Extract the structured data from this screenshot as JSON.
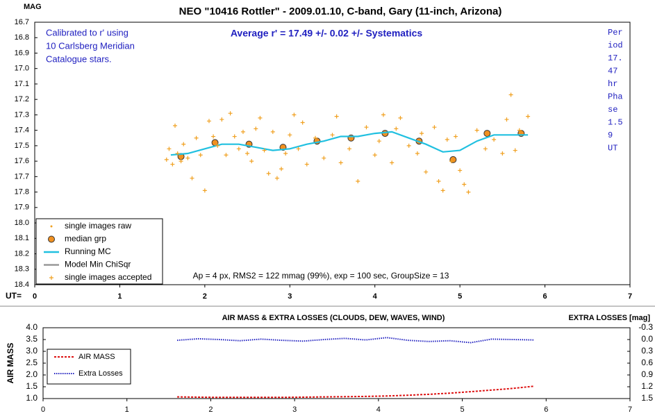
{
  "chart_data": [
    {
      "type": "line",
      "title": "NEO \"10416 Rottler\" - 2009.01.10, C-band, Gary (11-inch, Arizona)",
      "y_label": "MAG",
      "x_label": "UT=",
      "note_calibration": [
        "Calibrated to r' using",
        "10 Carlsberg Meridian",
        "Catalogue stars."
      ],
      "note_average": "Average r' = 17.49 +/- 0.02 +/- Systematics",
      "note_period": [
        "Per",
        "iod",
        "17.",
        "47",
        "hr",
        "Pha",
        "se",
        "1.5",
        "9",
        "UT"
      ],
      "note_params": "Ap = 4 px, RMS2 = 122 mmag (99%), exp = 100 sec, GroupSize = 13",
      "xlim": [
        0,
        7
      ],
      "xticks": [
        0,
        1,
        2,
        3,
        4,
        5,
        6,
        7
      ],
      "ylim": [
        18.4,
        16.7
      ],
      "yticks": [
        16.7,
        16.8,
        16.9,
        {
          "value": 17.0,
          "label": "17.0"
        },
        17.1,
        17.2,
        17.3,
        17.4,
        17.5,
        17.6,
        17.7,
        17.8,
        17.9,
        {
          "value": 18.0,
          "label": "18.0"
        },
        18.1,
        18.2,
        18.3,
        18.4
      ],
      "series": [
        {
          "name": "single images raw",
          "color": "#f0a020",
          "marker": "dot",
          "x": [],
          "values": []
        },
        {
          "name": "median grp",
          "color": "#f09020",
          "marker": "circle",
          "x": [
            1.72,
            2.12,
            2.52,
            2.92,
            3.32,
            3.72,
            4.12,
            4.52,
            4.92,
            5.32,
            5.72
          ],
          "values": [
            17.57,
            17.48,
            17.49,
            17.51,
            17.47,
            17.45,
            17.42,
            17.47,
            17.59,
            17.42,
            17.42
          ]
        },
        {
          "name": "Running MC",
          "color": "#20c0e0",
          "marker": "line",
          "x": [
            1.6,
            1.8,
            2.0,
            2.2,
            2.4,
            2.6,
            2.8,
            3.0,
            3.2,
            3.4,
            3.6,
            3.8,
            4.0,
            4.2,
            4.4,
            4.6,
            4.8,
            5.0,
            5.2,
            5.4,
            5.6,
            5.8
          ],
          "values": [
            17.56,
            17.55,
            17.52,
            17.49,
            17.49,
            17.51,
            17.53,
            17.52,
            17.49,
            17.47,
            17.44,
            17.44,
            17.42,
            17.41,
            17.45,
            17.49,
            17.54,
            17.53,
            17.47,
            17.43,
            17.43,
            17.43
          ]
        },
        {
          "name": "Model Min ChiSqr",
          "color": "#999999",
          "marker": "line",
          "x": [],
          "values": []
        },
        {
          "name": "single images accepted",
          "color": "#f0a020",
          "marker": "cross",
          "x": [
            1.55,
            1.58,
            1.62,
            1.65,
            1.68,
            1.72,
            1.75,
            1.8,
            1.85,
            1.9,
            1.95,
            2.0,
            2.05,
            2.1,
            2.15,
            2.2,
            2.25,
            2.3,
            2.35,
            2.4,
            2.45,
            2.5,
            2.55,
            2.6,
            2.65,
            2.7,
            2.75,
            2.8,
            2.85,
            2.9,
            2.95,
            3.0,
            3.05,
            3.1,
            3.15,
            3.2,
            3.3,
            3.4,
            3.5,
            3.55,
            3.6,
            3.7,
            3.8,
            3.9,
            4.0,
            4.05,
            4.1,
            4.2,
            4.25,
            4.3,
            4.4,
            4.5,
            4.55,
            4.6,
            4.7,
            4.75,
            4.8,
            4.85,
            4.9,
            4.95,
            5.0,
            5.05,
            5.1,
            5.2,
            5.3,
            5.4,
            5.5,
            5.55,
            5.6,
            5.65,
            5.7,
            5.8
          ],
          "values": [
            17.59,
            17.52,
            17.62,
            17.37,
            17.55,
            17.6,
            17.49,
            17.58,
            17.71,
            17.45,
            17.56,
            17.79,
            17.34,
            17.44,
            17.5,
            17.33,
            17.56,
            17.29,
            17.44,
            17.52,
            17.41,
            17.55,
            17.6,
            17.39,
            17.32,
            17.53,
            17.68,
            17.41,
            17.71,
            17.65,
            17.55,
            17.43,
            17.3,
            17.52,
            17.35,
            17.62,
            17.45,
            17.58,
            17.43,
            17.31,
            17.61,
            17.52,
            17.73,
            17.38,
            17.56,
            17.47,
            17.3,
            17.61,
            17.39,
            17.32,
            17.5,
            17.55,
            17.42,
            17.67,
            17.38,
            17.73,
            17.79,
            17.46,
            17.6,
            17.44,
            17.66,
            17.75,
            17.8,
            17.4,
            17.52,
            17.46,
            17.55,
            17.33,
            17.17,
            17.53,
            17.4,
            17.31
          ]
        }
      ]
    },
    {
      "type": "line",
      "title": "AIR MASS & EXTRA LOSSES (CLOUDS, DEW, WAVES, WIND)",
      "y_label": "AIR MASS",
      "y2_label": "EXTRA LOSSES [mag]",
      "xlim": [
        0,
        7
      ],
      "xticks": [
        0,
        1,
        2,
        3,
        4,
        5,
        6,
        7
      ],
      "ylim": [
        1.0,
        4.0
      ],
      "yticks": [
        {
          "value": 1.0,
          "label": "1.0"
        },
        1.5,
        {
          "value": 2.0,
          "label": "2.0"
        },
        2.5,
        {
          "value": 3.0,
          "label": "3.0"
        },
        3.5,
        {
          "value": 4.0,
          "label": "4.0"
        }
      ],
      "y2lim": [
        1.5,
        -0.3
      ],
      "y2ticks": [
        -0.3,
        {
          "value": 0.0,
          "label": "0.0"
        },
        0.3,
        0.6,
        0.9,
        1.2,
        1.5
      ],
      "series": [
        {
          "name": "AIR MASS",
          "color": "#dd1010",
          "marker": "line-dash",
          "x": [
            1.6,
            1.85,
            2.1,
            2.35,
            2.6,
            2.85,
            3.1,
            3.35,
            3.6,
            3.85,
            4.1,
            4.35,
            4.6,
            4.85,
            5.1,
            5.35,
            5.6,
            5.85
          ],
          "values": [
            1.07,
            1.06,
            1.05,
            1.05,
            1.05,
            1.05,
            1.06,
            1.07,
            1.08,
            1.09,
            1.11,
            1.14,
            1.18,
            1.23,
            1.29,
            1.36,
            1.43,
            1.52
          ]
        },
        {
          "name": "Extra Losses",
          "color": "#2020c0",
          "marker": "line-dot",
          "axis": "y2",
          "x": [
            1.6,
            1.85,
            2.1,
            2.35,
            2.6,
            2.85,
            3.1,
            3.35,
            3.6,
            3.85,
            4.1,
            4.35,
            4.6,
            4.85,
            5.1,
            5.35,
            5.6,
            5.85
          ],
          "values": [
            0.02,
            -0.02,
            0.0,
            0.03,
            -0.01,
            0.02,
            0.04,
            0.0,
            -0.03,
            0.01,
            -0.05,
            0.02,
            0.05,
            0.03,
            0.08,
            -0.01,
            0.0,
            0.01
          ]
        }
      ]
    }
  ]
}
